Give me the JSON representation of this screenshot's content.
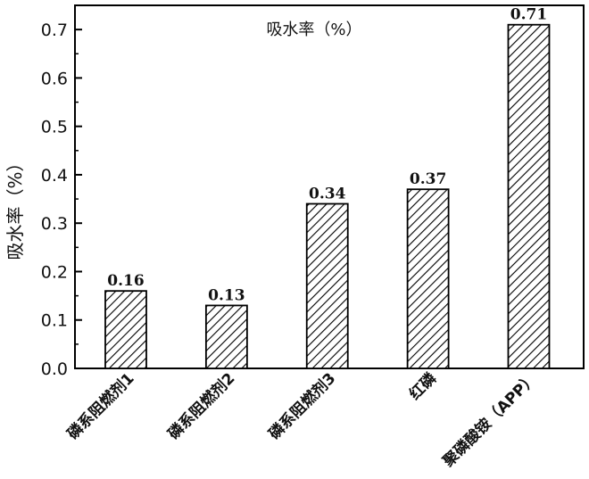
{
  "chart_data": {
    "type": "bar",
    "title": "吸水率（%）",
    "ylabel": "吸水率（%）",
    "xlabel": "",
    "categories": [
      "磷系阻燃剂1",
      "磷系阻燃剂2",
      "磷系阻燃剂3",
      "红磷",
      "聚磷酸铵（APP）"
    ],
    "values": [
      0.16,
      0.13,
      0.34,
      0.37,
      0.71
    ],
    "value_labels": [
      "0.16",
      "0.13",
      "0.34",
      "0.37",
      "0.71"
    ],
    "ylim": [
      0,
      0.75
    ],
    "yticks": [
      0.0,
      0.1,
      0.2,
      0.3,
      0.4,
      0.5,
      0.6,
      0.7
    ],
    "ytick_labels": [
      "0.0",
      "0.1",
      "0.2",
      "0.3",
      "0.4",
      "0.5",
      "0.6",
      "0.7"
    ],
    "grid": false,
    "bar_pattern": "diagonal-hatch",
    "colors": {
      "axis": "#000000",
      "bar_fill": "#ffffff",
      "hatch": "#000000"
    }
  }
}
